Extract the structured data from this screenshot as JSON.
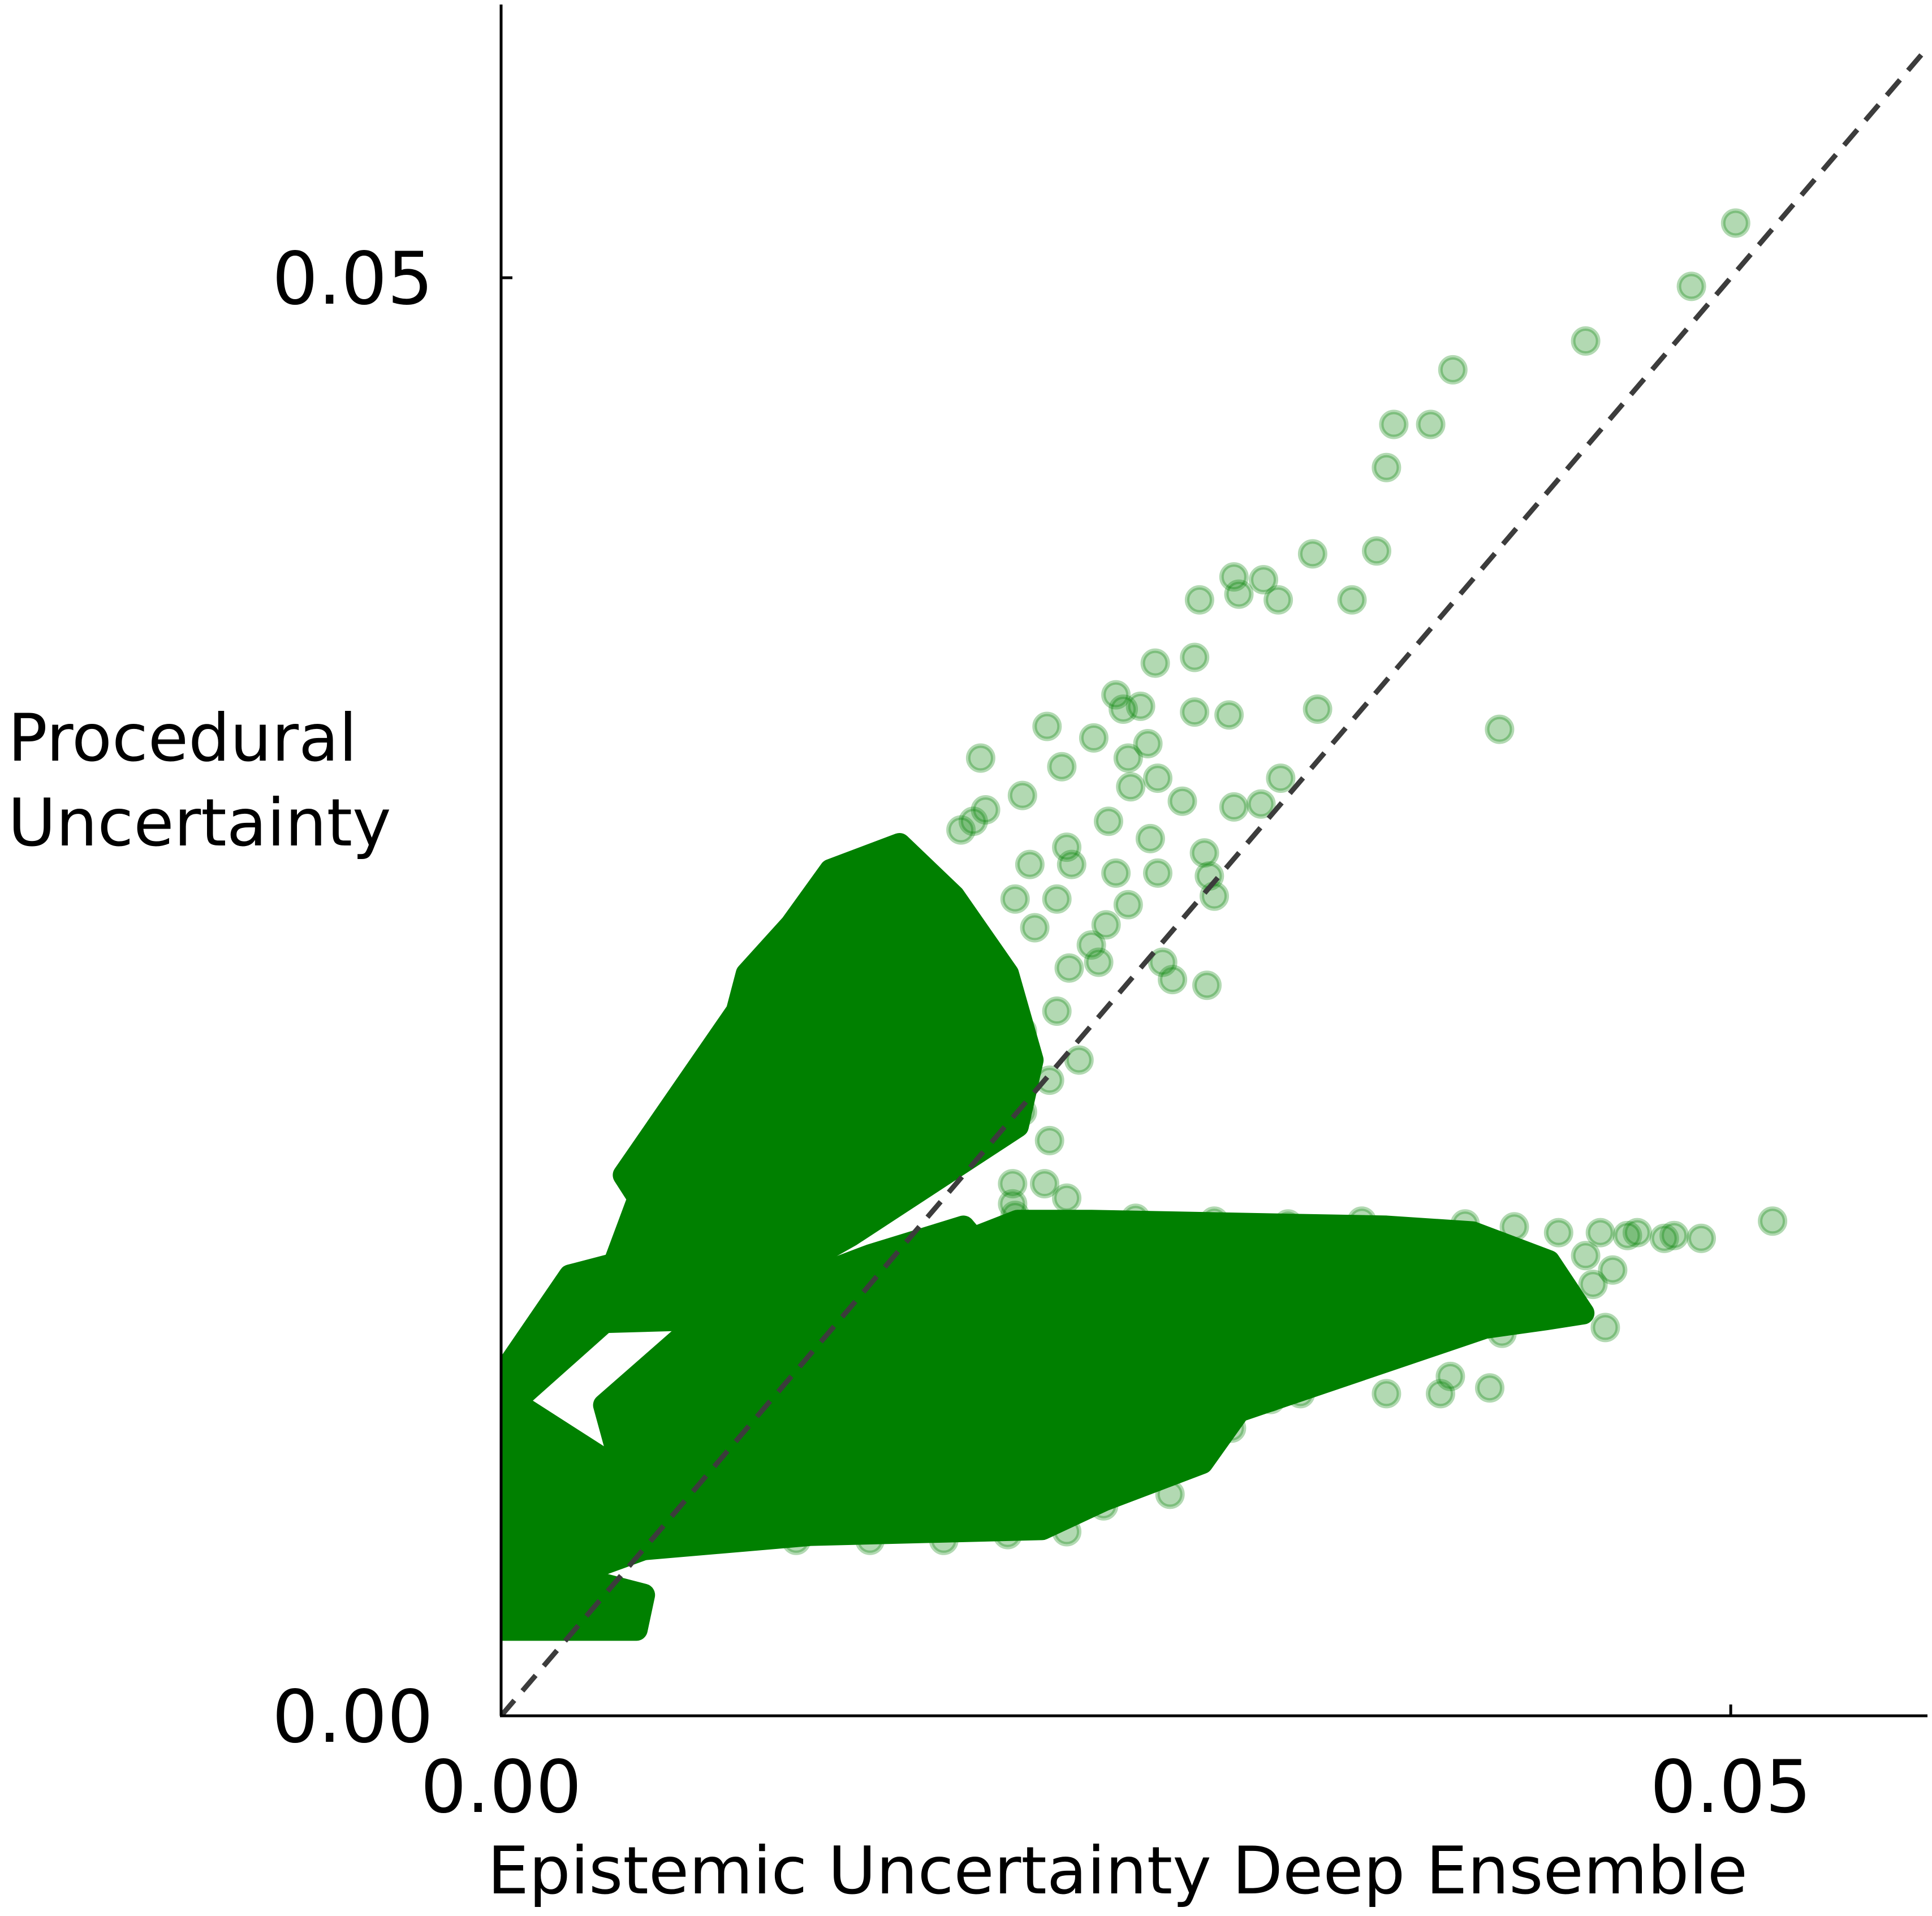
{
  "chart_data": {
    "type": "scatter",
    "title": "",
    "xlabel": "Epistemic Uncertainty Deep Ensemble",
    "ylabel_lines": [
      "Procedural",
      "Uncertainty"
    ],
    "xlim": [
      0.0,
      0.058
    ],
    "ylim": [
      0.0,
      0.0595
    ],
    "x_ticks": [
      {
        "value": 0.0,
        "label": "0.00"
      },
      {
        "value": 0.05,
        "label": "0.05"
      }
    ],
    "y_ticks": [
      {
        "value": 0.0,
        "label": "0.00"
      },
      {
        "value": 0.05,
        "label": "0.05"
      }
    ],
    "grid": false,
    "legend": "none",
    "reference_line": {
      "style": "dashed",
      "color": "#3c3c3c",
      "from": [
        0.0,
        0.0
      ],
      "to": [
        0.058,
        0.058
      ]
    },
    "marker_color": "#008000",
    "marker_alpha": 0.3,
    "dense_regions": [
      {
        "polygon": [
          [
            0.0,
            0.003
          ],
          [
            0.0055,
            0.003
          ],
          [
            0.0058,
            0.0042
          ],
          [
            0.0022,
            0.005
          ],
          [
            0.0,
            0.0051
          ]
        ]
      },
      {
        "polygon": [
          [
            0.0,
            0.004
          ],
          [
            0.0058,
            0.0058
          ],
          [
            0.0082,
            0.0067
          ],
          [
            0.0,
            0.0112
          ]
        ]
      },
      {
        "polygon": [
          [
            0.0,
            0.0105
          ],
          [
            0.0042,
            0.0137
          ],
          [
            0.0046,
            0.0157
          ],
          [
            0.0028,
            0.0153
          ],
          [
            0.0,
            0.0118
          ]
        ]
      },
      {
        "polygon": [
          [
            0.0042,
            0.0137
          ],
          [
            0.0046,
            0.0157
          ],
          [
            0.0056,
            0.018
          ],
          [
            0.005,
            0.0188
          ],
          [
            0.0096,
            0.0245
          ],
          [
            0.01,
            0.0258
          ],
          [
            0.0118,
            0.0275
          ],
          [
            0.0134,
            0.0294
          ],
          [
            0.0162,
            0.0303
          ],
          [
            0.0184,
            0.0285
          ],
          [
            0.0206,
            0.0258
          ],
          [
            0.0216,
            0.0228
          ],
          [
            0.021,
            0.0205
          ],
          [
            0.0142,
            0.0167
          ],
          [
            0.0082,
            0.0138
          ]
        ]
      },
      {
        "polygon": [
          [
            0.0058,
            0.0058
          ],
          [
            0.0126,
            0.0063
          ],
          [
            0.022,
            0.0065
          ],
          [
            0.0245,
            0.0075
          ],
          [
            0.0285,
            0.0088
          ],
          [
            0.03,
            0.0106
          ],
          [
            0.04,
            0.0135
          ],
          [
            0.0425,
            0.0138
          ],
          [
            0.044,
            0.014
          ],
          [
            0.0426,
            0.0158
          ],
          [
            0.0395,
            0.0168
          ],
          [
            0.036,
            0.017
          ],
          [
            0.024,
            0.0172
          ],
          [
            0.021,
            0.0172
          ],
          [
            0.0192,
            0.0166
          ],
          [
            0.0188,
            0.017
          ],
          [
            0.015,
            0.016
          ],
          [
            0.0082,
            0.0138
          ],
          [
            0.0042,
            0.0108
          ]
        ]
      }
    ],
    "points": [
      [
        0.0502,
        0.0519
      ],
      [
        0.0484,
        0.0497
      ],
      [
        0.0441,
        0.0478
      ],
      [
        0.0387,
        0.0468
      ],
      [
        0.0363,
        0.0449
      ],
      [
        0.0378,
        0.0449
      ],
      [
        0.036,
        0.0434
      ],
      [
        0.0356,
        0.0405
      ],
      [
        0.033,
        0.0404
      ],
      [
        0.031,
        0.0395
      ],
      [
        0.0298,
        0.0396
      ],
      [
        0.0316,
        0.0388
      ],
      [
        0.03,
        0.039
      ],
      [
        0.0346,
        0.0388
      ],
      [
        0.0284,
        0.0388
      ],
      [
        0.0282,
        0.0368
      ],
      [
        0.0266,
        0.0366
      ],
      [
        0.025,
        0.0355
      ],
      [
        0.0253,
        0.035
      ],
      [
        0.026,
        0.0351
      ],
      [
        0.0282,
        0.0349
      ],
      [
        0.0296,
        0.0348
      ],
      [
        0.0332,
        0.035
      ],
      [
        0.0406,
        0.0343
      ],
      [
        0.0222,
        0.0344
      ],
      [
        0.0241,
        0.034
      ],
      [
        0.0263,
        0.0338
      ],
      [
        0.0195,
        0.0333
      ],
      [
        0.0228,
        0.033
      ],
      [
        0.0255,
        0.0333
      ],
      [
        0.0267,
        0.0326
      ],
      [
        0.0317,
        0.0326
      ],
      [
        0.0256,
        0.0323
      ],
      [
        0.0309,
        0.0317
      ],
      [
        0.0277,
        0.0318
      ],
      [
        0.0212,
        0.032
      ],
      [
        0.0197,
        0.0315
      ],
      [
        0.0187,
        0.0308
      ],
      [
        0.0192,
        0.0311
      ],
      [
        0.023,
        0.0302
      ],
      [
        0.0247,
        0.0311
      ],
      [
        0.0298,
        0.0316
      ],
      [
        0.0215,
        0.0296
      ],
      [
        0.0232,
        0.0296
      ],
      [
        0.025,
        0.0293
      ],
      [
        0.0267,
        0.0293
      ],
      [
        0.0286,
        0.03
      ],
      [
        0.0153,
        0.029
      ],
      [
        0.0175,
        0.029
      ],
      [
        0.0264,
        0.0305
      ],
      [
        0.0288,
        0.0292
      ],
      [
        0.0226,
        0.0284
      ],
      [
        0.0209,
        0.0284
      ],
      [
        0.017,
        0.0284
      ],
      [
        0.0255,
        0.0282
      ],
      [
        0.0246,
        0.0275
      ],
      [
        0.029,
        0.0285
      ],
      [
        0.0217,
        0.0274
      ],
      [
        0.024,
        0.0268
      ],
      [
        0.0243,
        0.0262
      ],
      [
        0.0181,
        0.0275
      ],
      [
        0.0195,
        0.0268
      ],
      [
        0.0231,
        0.026
      ],
      [
        0.0269,
        0.0262
      ],
      [
        0.0273,
        0.0256
      ],
      [
        0.0287,
        0.0254
      ],
      [
        0.0205,
        0.0254
      ],
      [
        0.0226,
        0.0245
      ],
      [
        0.0212,
        0.0238
      ],
      [
        0.0235,
        0.0228
      ],
      [
        0.0223,
        0.0221
      ],
      [
        0.0206,
        0.0214
      ],
      [
        0.0212,
        0.021
      ],
      [
        0.0198,
        0.0202
      ],
      [
        0.0223,
        0.02
      ],
      [
        0.0208,
        0.0185
      ],
      [
        0.0221,
        0.0185
      ],
      [
        0.0208,
        0.0178
      ],
      [
        0.0209,
        0.0174
      ],
      [
        0.023,
        0.018
      ],
      [
        0.0258,
        0.0173
      ],
      [
        0.029,
        0.0172
      ],
      [
        0.032,
        0.0171
      ],
      [
        0.035,
        0.0172
      ],
      [
        0.0392,
        0.0171
      ],
      [
        0.0412,
        0.017
      ],
      [
        0.043,
        0.0168
      ],
      [
        0.0447,
        0.0168
      ],
      [
        0.0458,
        0.0167
      ],
      [
        0.0462,
        0.0168
      ],
      [
        0.0473,
        0.0166
      ],
      [
        0.0477,
        0.0167
      ],
      [
        0.0488,
        0.0166
      ],
      [
        0.0517,
        0.0172
      ],
      [
        0.0441,
        0.016
      ],
      [
        0.0452,
        0.0155
      ],
      [
        0.0426,
        0.015
      ],
      [
        0.0444,
        0.015
      ],
      [
        0.0449,
        0.0135
      ],
      [
        0.042,
        0.014
      ],
      [
        0.0407,
        0.0133
      ],
      [
        0.0386,
        0.0118
      ],
      [
        0.0402,
        0.0114
      ],
      [
        0.0382,
        0.0112
      ],
      [
        0.036,
        0.0112
      ],
      [
        0.0325,
        0.0112
      ],
      [
        0.0313,
        0.011
      ],
      [
        0.0283,
        0.0102
      ],
      [
        0.0297,
        0.01
      ],
      [
        0.0265,
        0.0087
      ],
      [
        0.0272,
        0.0077
      ],
      [
        0.026,
        0.0082
      ],
      [
        0.0245,
        0.0073
      ],
      [
        0.023,
        0.0064
      ],
      [
        0.0206,
        0.0063
      ],
      [
        0.018,
        0.0061
      ],
      [
        0.015,
        0.0061
      ],
      [
        0.012,
        0.0061
      ],
      [
        0.0095,
        0.0062
      ],
      [
        0.0052,
        0.0033
      ]
    ]
  }
}
